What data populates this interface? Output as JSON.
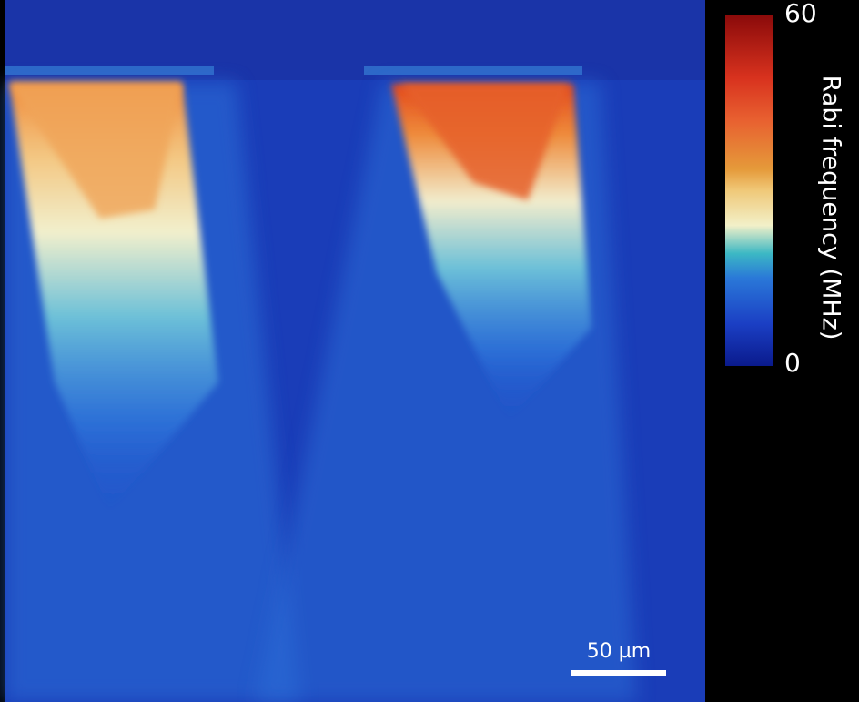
{
  "colorbar": {
    "label": "Rabi frequency (MHz)",
    "min": 0,
    "max": 60
  },
  "scale_bar": {
    "label": "50 µm"
  }
}
